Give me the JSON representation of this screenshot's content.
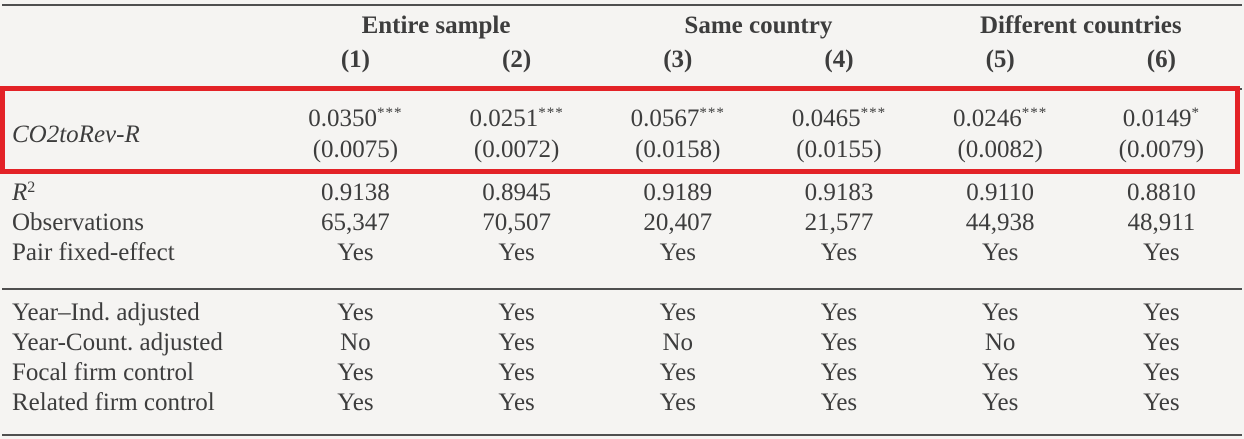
{
  "highlight": {
    "color": "#e32227"
  },
  "table": {
    "column_groups": [
      {
        "label": "Entire sample"
      },
      {
        "label": "Same country"
      },
      {
        "label": "Different countries"
      }
    ],
    "column_numbers": [
      "(1)",
      "(2)",
      "(3)",
      "(4)",
      "(5)",
      "(6)"
    ],
    "coefficient_row": {
      "label": "CO2toRev-R",
      "cells": [
        {
          "estimate": "0.0350",
          "stars": "***",
          "se": "(0.0075)"
        },
        {
          "estimate": "0.0251",
          "stars": "***",
          "se": "(0.0072)"
        },
        {
          "estimate": "0.0567",
          "stars": "***",
          "se": "(0.0158)"
        },
        {
          "estimate": "0.0465",
          "stars": "***",
          "se": "(0.0155)"
        },
        {
          "estimate": "0.0246",
          "stars": "***",
          "se": "(0.0082)"
        },
        {
          "estimate": "0.0149",
          "stars": "*",
          "se": "(0.0079)"
        }
      ]
    },
    "stat_rows": [
      {
        "label": "R",
        "sup": "2",
        "values": [
          "0.9138",
          "0.8945",
          "0.9189",
          "0.9183",
          "0.9110",
          "0.8810"
        ]
      },
      {
        "label": "Observations",
        "values": [
          "65,347",
          "70,507",
          "20,407",
          "21,577",
          "44,938",
          "48,911"
        ]
      },
      {
        "label": "Pair fixed-effect",
        "values": [
          "Yes",
          "Yes",
          "Yes",
          "Yes",
          "Yes",
          "Yes"
        ]
      }
    ],
    "control_rows": [
      {
        "label": "Year–Ind. adjusted",
        "values": [
          "Yes",
          "Yes",
          "Yes",
          "Yes",
          "Yes",
          "Yes"
        ]
      },
      {
        "label": "Year-Count. adjusted",
        "values": [
          "No",
          "Yes",
          "No",
          "Yes",
          "No",
          "Yes"
        ]
      },
      {
        "label": "Focal firm control",
        "values": [
          "Yes",
          "Yes",
          "Yes",
          "Yes",
          "Yes",
          "Yes"
        ]
      },
      {
        "label": "Related firm control",
        "values": [
          "Yes",
          "Yes",
          "Yes",
          "Yes",
          "Yes",
          "Yes"
        ]
      }
    ]
  }
}
